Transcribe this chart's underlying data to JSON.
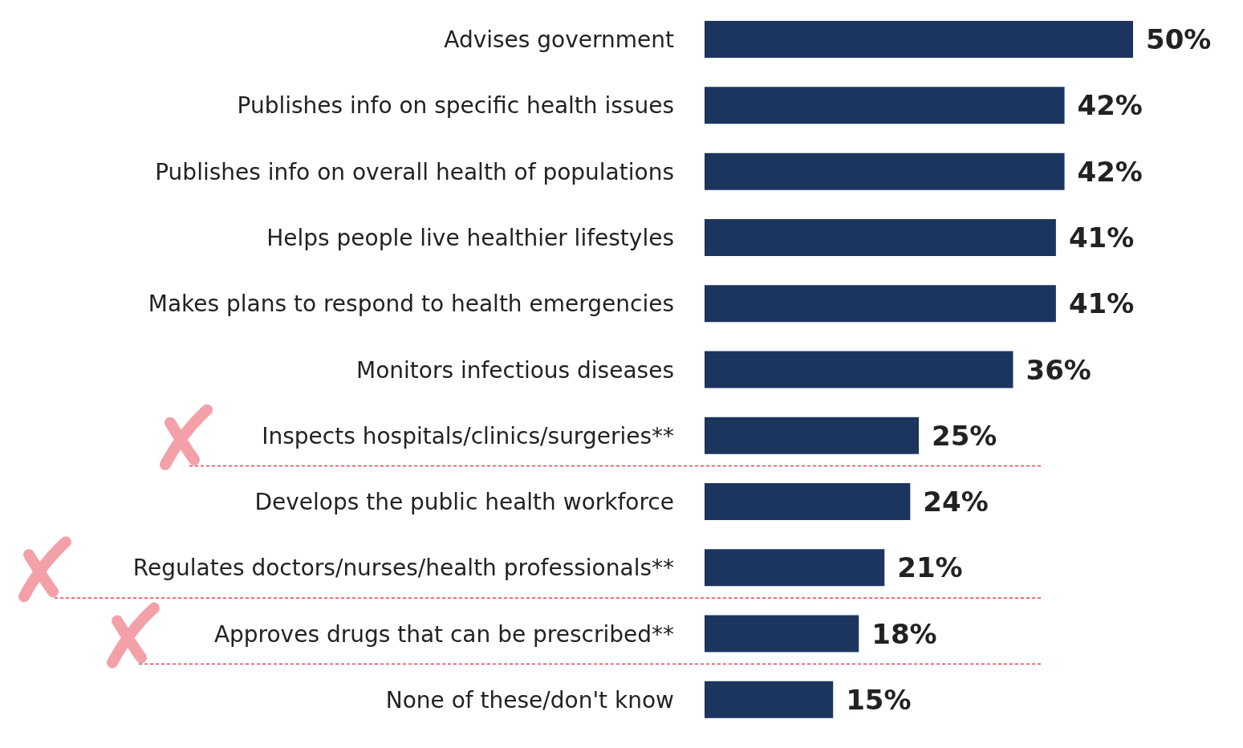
{
  "chart_data": {
    "type": "bar",
    "orientation": "horizontal",
    "categories": [
      "Advises government",
      "Publishes info on specific health issues",
      "Publishes info on overall health of populations",
      "Helps people live healthier lifestyles",
      "Makes plans to respond to health emergencies",
      "Monitors infectious diseases",
      "Inspects hospitals/clinics/surgeries**",
      "Develops the public health workforce",
      "Regulates doctors/nurses/health professionals**",
      "Approves drugs that can be prescribed**",
      "None of these/don't know"
    ],
    "values": [
      50,
      42,
      42,
      41,
      41,
      36,
      25,
      24,
      21,
      18,
      15
    ],
    "value_labels": [
      "50%",
      "42%",
      "42%",
      "41%",
      "41%",
      "36%",
      "25%",
      "24%",
      "21%",
      "18%",
      "15%"
    ],
    "color": "#1c355e",
    "xlim": [
      0,
      50
    ],
    "tick_labels": "y"
  }
}
